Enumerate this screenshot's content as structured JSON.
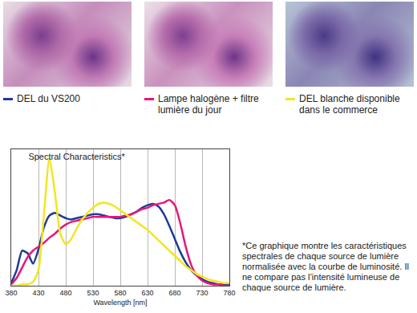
{
  "chart_data": {
    "type": "line",
    "title": "Spectral Characteristics*",
    "x_label": "Wavelength [nm]",
    "x": [
      380,
      390,
      400,
      410,
      420,
      430,
      440,
      450,
      460,
      470,
      480,
      490,
      500,
      510,
      520,
      530,
      540,
      550,
      560,
      570,
      580,
      590,
      600,
      610,
      620,
      630,
      640,
      650,
      660,
      670,
      680,
      690,
      700,
      710,
      720,
      730,
      740,
      750,
      760,
      770,
      780
    ],
    "series": [
      {
        "name": "DEL du VS200",
        "color": "#1c3c94",
        "values": [
          0.02,
          0.12,
          0.27,
          0.25,
          0.17,
          0.28,
          0.45,
          0.54,
          0.56,
          0.54,
          0.52,
          0.51,
          0.52,
          0.53,
          0.54,
          0.55,
          0.55,
          0.54,
          0.53,
          0.52,
          0.52,
          0.53,
          0.55,
          0.57,
          0.6,
          0.62,
          0.63,
          0.61,
          0.55,
          0.46,
          0.36,
          0.26,
          0.18,
          0.12,
          0.08,
          0.05,
          0.03,
          0.02,
          0.01,
          0.01,
          0.01
        ]
      },
      {
        "name": "Lampe halogène + filtre lumière du jour",
        "color": "#e5177c",
        "values": [
          0.01,
          0.06,
          0.14,
          0.22,
          0.27,
          0.3,
          0.33,
          0.37,
          0.4,
          0.44,
          0.47,
          0.49,
          0.5,
          0.51,
          0.52,
          0.53,
          0.53,
          0.53,
          0.53,
          0.53,
          0.53,
          0.54,
          0.55,
          0.57,
          0.59,
          0.6,
          0.62,
          0.63,
          0.64,
          0.66,
          0.62,
          0.48,
          0.3,
          0.16,
          0.08,
          0.04,
          0.02,
          0.01,
          0.01,
          0.0,
          0.0
        ]
      },
      {
        "name": "DEL blanche disponible dans le commerce",
        "color": "#f3e51e",
        "values": [
          0.0,
          0.0,
          0.01,
          0.01,
          0.03,
          0.12,
          0.55,
          0.98,
          0.72,
          0.4,
          0.32,
          0.36,
          0.44,
          0.51,
          0.56,
          0.6,
          0.63,
          0.64,
          0.63,
          0.61,
          0.58,
          0.55,
          0.52,
          0.49,
          0.46,
          0.43,
          0.39,
          0.35,
          0.31,
          0.27,
          0.23,
          0.19,
          0.15,
          0.12,
          0.09,
          0.07,
          0.05,
          0.04,
          0.03,
          0.02,
          0.02
        ]
      }
    ],
    "xlim": [
      380,
      780
    ],
    "xticks": [
      380,
      430,
      480,
      530,
      580,
      630,
      680,
      730,
      780
    ],
    "ylim": [
      0,
      1.05
    ],
    "yticks": [],
    "grid": true,
    "tick_labels": "x",
    "footnote": "*Ce graphique montre les caractéristiques spectrales de chaque source de lumière normalisée avec la courbe de luminosité. Il ne compare pas l’intensité lumineuse de chaque source de lumière."
  }
}
